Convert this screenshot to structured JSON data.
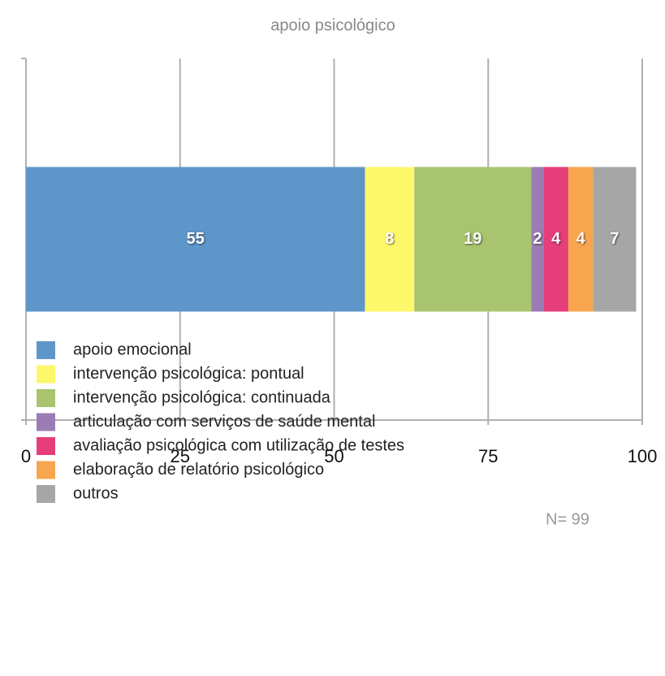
{
  "chart_data": {
    "type": "stacked_barh",
    "title": "apoio psicológico",
    "categories": [
      null
    ],
    "series": [
      {
        "name": "apoio emocional",
        "color": "#5f96c9",
        "values": [
          55
        ]
      },
      {
        "name": "intervenção psicológica: pontual",
        "color": "#fdf76b",
        "values": [
          8
        ]
      },
      {
        "name": "intervenção psicológica: continuada",
        "color": "#a8c46f",
        "values": [
          19
        ]
      },
      {
        "name": "articulação com serviços de saúde mental",
        "color": "#9b7db4",
        "values": [
          2
        ]
      },
      {
        "name": "avaliação psicológica com utilização de testes",
        "color": "#e63e7b",
        "values": [
          4
        ]
      },
      {
        "name": "elaboração de relatório psicológico",
        "color": "#f8a54f",
        "values": [
          4
        ]
      },
      {
        "name": "outros",
        "color": "#a6a6a6",
        "values": [
          7
        ]
      }
    ],
    "xlim": [
      0,
      100
    ],
    "xticks": [
      0,
      25,
      50,
      75,
      100
    ],
    "grid": true,
    "legend": "bottom",
    "annotation": "N= 99"
  }
}
